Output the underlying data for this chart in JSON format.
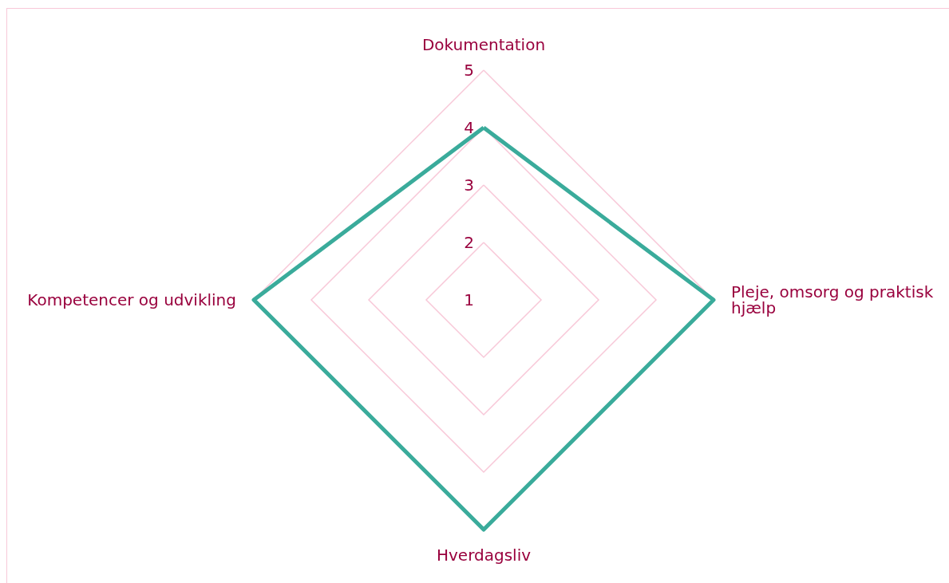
{
  "chart_data": {
    "type": "radar",
    "categories": [
      "Dokumentation",
      "Pleje, omsorg og praktisk\nhjælp",
      "Hverdagsliv",
      "Kompetencer og udvikling"
    ],
    "series": [
      {
        "color": "#3aab9b",
        "values": [
          4,
          5,
          5,
          5
        ]
      }
    ],
    "ylim": [
      1,
      5
    ],
    "yticks": [
      1,
      2,
      3,
      4,
      5
    ],
    "grid": true,
    "marker": "none",
    "line_style": "solid"
  }
}
